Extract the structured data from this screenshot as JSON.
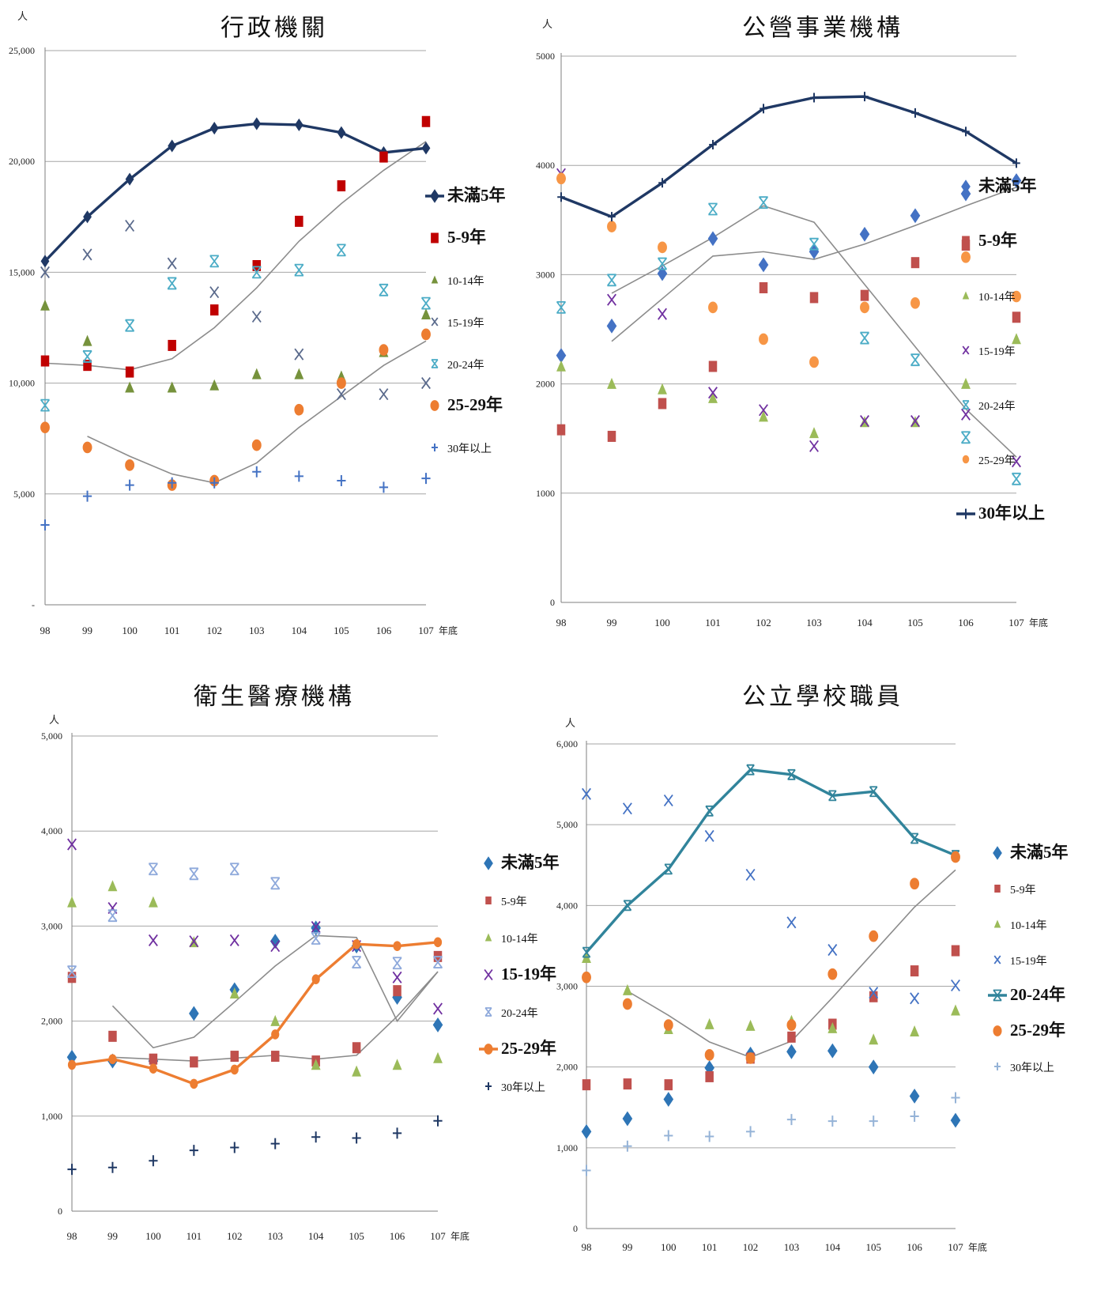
{
  "colors": {
    "navy": "#1F3864",
    "red": "#C00000",
    "olive": "#76923C",
    "slate": "#5A6A8C",
    "teal": "#4BACC6",
    "orange": "#ED7D31",
    "blue": "#4472C4",
    "purple": "#7030A0",
    "lightblue": "#8EA9DB",
    "darkred": "#B24040",
    "green": "#8DB53C",
    "ltblue2": "#95B3D7",
    "steel": "#2E75B6",
    "tealline": "#31849B",
    "gray": "#808080"
  },
  "chart_data": [
    {
      "type": "line",
      "title": "行政機關",
      "unit": "人",
      "x_suffix": "年底",
      "x": [
        "98",
        "99",
        "100",
        "101",
        "102",
        "103",
        "104",
        "105",
        "106",
        "107"
      ],
      "y_ticks": [
        "-",
        "5,000",
        "10,000",
        "15,000",
        "20,000",
        "25,000"
      ],
      "ylim": [
        0,
        25000
      ],
      "grid": true,
      "legend_position": "right",
      "series": [
        {
          "name": "未滿5年",
          "color": "#1F3864",
          "marker": "diamond",
          "line": true,
          "bold": true,
          "values": [
            15500,
            17500,
            19200,
            20700,
            21500,
            21700,
            21650,
            21300,
            20400,
            20600
          ]
        },
        {
          "name": "5-9年",
          "color": "#C00000",
          "marker": "square",
          "bold": true,
          "values": [
            11000,
            10800,
            10500,
            11700,
            13300,
            15300,
            17300,
            18900,
            20200,
            21800
          ]
        },
        {
          "name": "10-14年",
          "color": "#76923C",
          "marker": "triangle",
          "values": [
            13500,
            11900,
            9800,
            9800,
            9900,
            10400,
            10400,
            10300,
            11400,
            13100
          ]
        },
        {
          "name": "15-19年",
          "color": "#5A6A8C",
          "marker": "x",
          "values": [
            15000,
            15800,
            17100,
            15400,
            14100,
            13000,
            11300,
            9500,
            9500,
            10000
          ]
        },
        {
          "name": "20-24年",
          "color": "#4BACC6",
          "marker": "asterisk",
          "values": [
            9000,
            11200,
            12600,
            14500,
            15500,
            15000,
            15100,
            16000,
            14200,
            13600
          ]
        },
        {
          "name": "25-29年",
          "color": "#ED7D31",
          "marker": "circle",
          "bold": true,
          "values": [
            8000,
            7100,
            6300,
            5400,
            5600,
            7200,
            8800,
            10000,
            11500,
            12200
          ]
        },
        {
          "name": "30年以上",
          "color": "#4472C4",
          "marker": "plus",
          "values": [
            3600,
            4900,
            5400,
            5500,
            5500,
            6000,
            5800,
            5600,
            5300,
            5700
          ]
        }
      ],
      "trendlines": [
        [
          10900,
          10800,
          10600,
          11100,
          12500,
          14300,
          16400,
          18100,
          19600,
          20900
        ],
        [
          null,
          7600,
          6700,
          5900,
          5500,
          6400,
          8000,
          9400,
          10800,
          11900
        ]
      ]
    },
    {
      "type": "line",
      "title": "公營事業機構",
      "unit": "人",
      "x_suffix": "年底",
      "x": [
        "98",
        "99",
        "100",
        "101",
        "102",
        "103",
        "104",
        "105",
        "106",
        "107"
      ],
      "y_ticks": [
        "0",
        "1000",
        "2000",
        "3000",
        "4000",
        "5000"
      ],
      "ylim": [
        0,
        5000
      ],
      "grid": true,
      "legend_position": "right",
      "series": [
        {
          "name": "未滿5年",
          "color": "#4472C4",
          "marker": "diamond",
          "bold": true,
          "values": [
            2260,
            2530,
            3010,
            3330,
            3090,
            3210,
            3370,
            3540,
            3740,
            3860
          ]
        },
        {
          "name": "5-9年",
          "color": "#C0504D",
          "marker": "square",
          "bold": true,
          "values": [
            1580,
            1520,
            1820,
            2160,
            2880,
            2790,
            2810,
            3110,
            3270,
            2610
          ]
        },
        {
          "name": "10-14年",
          "color": "#9BBB59",
          "marker": "triangle",
          "values": [
            2160,
            2000,
            1950,
            1870,
            1700,
            1550,
            1650,
            1650,
            2000,
            2410
          ]
        },
        {
          "name": "15-19年",
          "color": "#7030A0",
          "marker": "x",
          "values": [
            3920,
            2770,
            2640,
            1920,
            1760,
            1430,
            1660,
            1660,
            1720,
            1290
          ]
        },
        {
          "name": "20-24年",
          "color": "#4BACC6",
          "marker": "asterisk",
          "values": [
            2700,
            2950,
            3100,
            3600,
            3660,
            3280,
            2420,
            2220,
            1510,
            1130
          ]
        },
        {
          "name": "25-29年",
          "color": "#F79646",
          "marker": "circle",
          "values": [
            3880,
            3440,
            3250,
            2700,
            2410,
            2200,
            2700,
            2740,
            3160,
            2800
          ]
        },
        {
          "name": "30年以上",
          "color": "#1F3864",
          "marker": "plus",
          "line": true,
          "bold": true,
          "values": [
            3710,
            3530,
            3840,
            4190,
            4520,
            4620,
            4630,
            4480,
            4310,
            4020
          ]
        }
      ],
      "trendlines": [
        [
          null,
          2830,
          3080,
          3340,
          3630,
          3480,
          2910,
          2340,
          1770,
          1330
        ],
        [
          null,
          2390,
          2780,
          3170,
          3210,
          3140,
          3280,
          3450,
          3630,
          3800
        ]
      ]
    },
    {
      "type": "line",
      "title": "衛生醫療機構",
      "unit": "人",
      "x_suffix": "年底",
      "x": [
        "98",
        "99",
        "100",
        "101",
        "102",
        "103",
        "104",
        "105",
        "106",
        "107"
      ],
      "y_ticks": [
        "0",
        "1,000",
        "2,000",
        "3,000",
        "4,000",
        "5,000"
      ],
      "ylim": [
        0,
        5000
      ],
      "grid": true,
      "legend_position": "right",
      "series": [
        {
          "name": "未滿5年",
          "color": "#2E75B6",
          "marker": "diamond",
          "bold": true,
          "values": [
            1620,
            1580,
            1580,
            2080,
            2330,
            2840,
            2980,
            2790,
            2250,
            1960
          ]
        },
        {
          "name": "5-9年",
          "color": "#C0504D",
          "marker": "square",
          "values": [
            2460,
            1840,
            1600,
            1570,
            1630,
            1630,
            1580,
            1720,
            2320,
            2680
          ]
        },
        {
          "name": "10-14年",
          "color": "#9BBB59",
          "marker": "triangle",
          "values": [
            3250,
            3420,
            3250,
            2830,
            2290,
            2000,
            1540,
            1470,
            1540,
            1610
          ]
        },
        {
          "name": "15-19年",
          "color": "#7030A0",
          "marker": "x",
          "bold": true,
          "values": [
            3860,
            3190,
            2850,
            2840,
            2850,
            2790,
            2990,
            2790,
            2460,
            2130
          ]
        },
        {
          "name": "20-24年",
          "color": "#8EA9DB",
          "marker": "asterisk",
          "values": [
            2520,
            3110,
            3600,
            3550,
            3600,
            3450,
            2870,
            2620,
            2610,
            2620
          ]
        },
        {
          "name": "25-29年",
          "color": "#ED7D31",
          "marker": "circle",
          "line": true,
          "bold": true,
          "values": [
            1540,
            1600,
            1500,
            1340,
            1490,
            1860,
            2440,
            2810,
            2790,
            2830
          ]
        },
        {
          "name": "30年以上",
          "color": "#1F3864",
          "marker": "plus",
          "values": [
            440,
            460,
            530,
            640,
            670,
            710,
            780,
            770,
            820,
            950
          ]
        }
      ],
      "trendlines": [
        [
          null,
          2160,
          1720,
          1830,
          2200,
          2580,
          2900,
          2880,
          2000,
          2520
        ],
        [
          null,
          1620,
          1600,
          1580,
          1610,
          1640,
          1600,
          1640,
          2050,
          2520
        ]
      ]
    },
    {
      "type": "line",
      "title": "公立學校職員",
      "unit": "人",
      "x_suffix": "年底",
      "x": [
        "98",
        "99",
        "100",
        "101",
        "102",
        "103",
        "104",
        "105",
        "106",
        "107"
      ],
      "y_ticks": [
        "0",
        "1,000",
        "2,000",
        "3,000",
        "4,000",
        "5,000",
        "6,000"
      ],
      "ylim": [
        0,
        6000
      ],
      "grid": true,
      "legend_position": "right",
      "series": [
        {
          "name": "未滿5年",
          "color": "#2E75B6",
          "marker": "diamond",
          "bold": true,
          "values": [
            1200,
            1360,
            1600,
            1990,
            2160,
            2190,
            2200,
            2000,
            1640,
            1340
          ]
        },
        {
          "name": "5-9年",
          "color": "#C0504D",
          "marker": "square",
          "values": [
            1780,
            1790,
            1780,
            1880,
            2110,
            2370,
            2530,
            2870,
            3190,
            3440
          ]
        },
        {
          "name": "10-14年",
          "color": "#9BBB59",
          "marker": "triangle",
          "values": [
            3350,
            2950,
            2470,
            2530,
            2510,
            2570,
            2480,
            2340,
            2440,
            2700
          ]
        },
        {
          "name": "15-19年",
          "color": "#4472C4",
          "marker": "x",
          "values": [
            5380,
            5200,
            5300,
            4860,
            4380,
            3790,
            3450,
            2920,
            2850,
            3010
          ]
        },
        {
          "name": "20-24年",
          "color": "#31849B",
          "marker": "asterisk",
          "line": true,
          "bold": true,
          "values": [
            3420,
            4000,
            4450,
            5170,
            5680,
            5620,
            5360,
            5410,
            4830,
            4620
          ]
        },
        {
          "name": "25-29年",
          "color": "#ED7D31",
          "marker": "circle",
          "bold": true,
          "values": [
            3110,
            2780,
            2520,
            2150,
            2110,
            2520,
            3150,
            3620,
            4270,
            4600
          ]
        },
        {
          "name": "30年以上",
          "color": "#95B3D7",
          "marker": "plus",
          "values": [
            720,
            1020,
            1150,
            1140,
            1200,
            1350,
            1330,
            1330,
            1390,
            1620
          ]
        }
      ],
      "trendlines": [
        [
          null,
          2940,
          2640,
          2310,
          2120,
          2320,
          2860,
          3420,
          3980,
          4440
        ]
      ]
    }
  ]
}
